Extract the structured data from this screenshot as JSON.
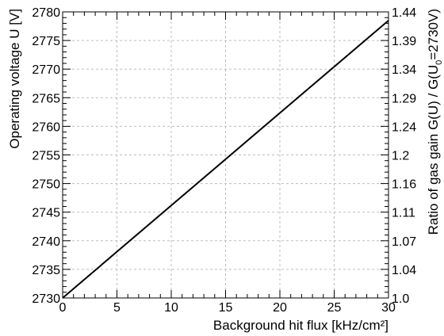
{
  "chart_data": {
    "type": "line",
    "x_label": "Background hit flux [kHz/cm²]",
    "y_label": "Operating voltage U [V]",
    "y2_label": {
      "prefix": "Ratio of gas gain G(U) / G(U",
      "subscript": "0",
      "suffix": "=2730V)"
    },
    "xlim": [
      0,
      30
    ],
    "ylim": [
      2730,
      2780
    ],
    "y2lim": [
      1.0,
      1.44
    ],
    "x_ticks": [
      "0",
      "5",
      "10",
      "15",
      "20",
      "25",
      "30"
    ],
    "y_ticks": [
      "2730",
      "2735",
      "2740",
      "2745",
      "2750",
      "2755",
      "2760",
      "2765",
      "2770",
      "2775",
      "2780"
    ],
    "y2_ticks": [
      "1.0",
      "1.04",
      "1.07",
      "1.11",
      "1.16",
      "1.2",
      "1.24",
      "1.29",
      "1.34",
      "1.39",
      "1.44"
    ],
    "grid": true,
    "series": [
      {
        "x": [
          0,
          30
        ],
        "y": [
          2730,
          2778.5
        ],
        "color": "#000000"
      }
    ]
  }
}
